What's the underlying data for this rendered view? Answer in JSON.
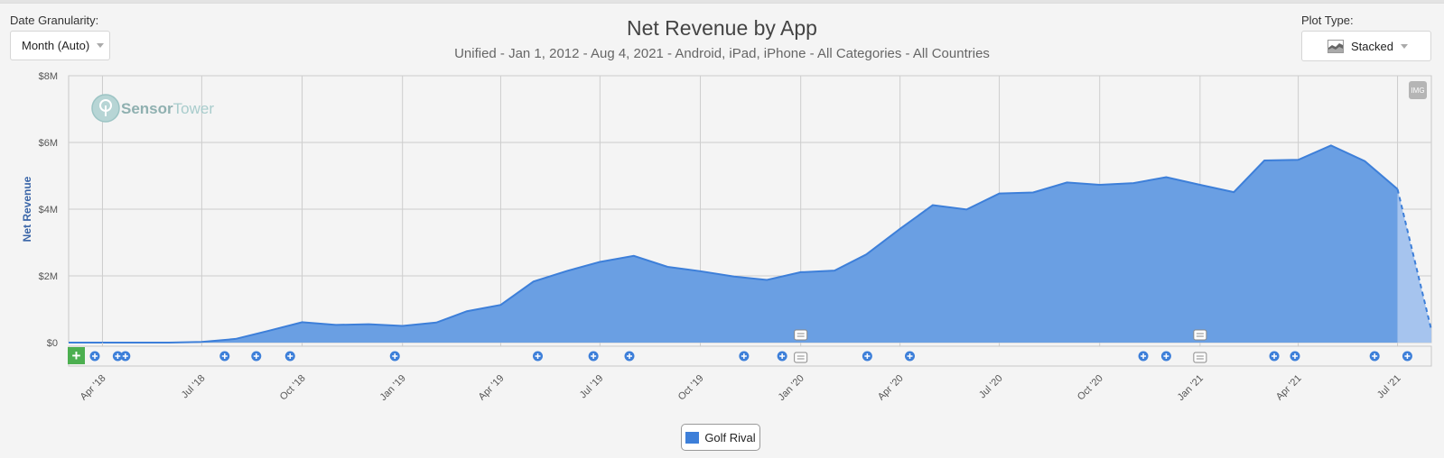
{
  "controls": {
    "granularity_label": "Date Granularity:",
    "granularity_value": "Month (Auto)",
    "plot_type_label": "Plot Type:",
    "plot_type_value": "Stacked",
    "plot_type_icon": "area-chart-icon"
  },
  "watermark": {
    "brand1": "Sensor",
    "brand2": "Tower",
    "logo_icon": "sensortower-logo-icon"
  },
  "img_button_label": "IMG",
  "add_button_label": "+",
  "colors": {
    "series": "#3d7fd9",
    "fill": "#6a9fe3",
    "projection": "#a6c4ee",
    "axis_text": "#3b66a8",
    "add_green": "#4caf50"
  },
  "chart_data": {
    "type": "area",
    "title": "Net Revenue by App",
    "subtitle": "Unified - Jan 1, 2012 - Aug 4, 2021 - Android, iPad, iPhone - All Categories - All Countries",
    "ylabel": "Net Revenue",
    "xlabel": "",
    "ylim": [
      0,
      8000000
    ],
    "y_ticks": [
      {
        "value": 0,
        "label": "$0"
      },
      {
        "value": 2000000,
        "label": "$2M"
      },
      {
        "value": 4000000,
        "label": "$4M"
      },
      {
        "value": 6000000,
        "label": "$6M"
      },
      {
        "value": 8000000,
        "label": "$8M"
      }
    ],
    "x_ticks": [
      "Apr '18",
      "Jul '18",
      "Oct '18",
      "Jan '19",
      "Apr '19",
      "Jul '19",
      "Oct '19",
      "Jan '20",
      "Apr '20",
      "Jul '20",
      "Oct '20",
      "Jan '21",
      "Apr '21",
      "Jul '21"
    ],
    "x_tick_dates": [
      "2018-04-01",
      "2018-07-01",
      "2018-10-01",
      "2019-01-01",
      "2019-04-01",
      "2019-07-01",
      "2019-10-01",
      "2020-01-01",
      "2020-04-01",
      "2020-07-01",
      "2020-10-01",
      "2021-01-01",
      "2021-04-01",
      "2021-07-01"
    ],
    "grid": true,
    "legend_position": "bottom-center",
    "series": [
      {
        "name": "Golf Rival",
        "color": "#3d7fd9",
        "points": [
          {
            "x": "2018-03-01",
            "y": 0
          },
          {
            "x": "2018-04-01",
            "y": 0
          },
          {
            "x": "2018-05-01",
            "y": 0
          },
          {
            "x": "2018-06-01",
            "y": 0
          },
          {
            "x": "2018-07-01",
            "y": 20000
          },
          {
            "x": "2018-08-01",
            "y": 110000
          },
          {
            "x": "2018-09-01",
            "y": 360000
          },
          {
            "x": "2018-10-01",
            "y": 610000
          },
          {
            "x": "2018-11-01",
            "y": 530000
          },
          {
            "x": "2018-12-01",
            "y": 550000
          },
          {
            "x": "2019-01-01",
            "y": 500000
          },
          {
            "x": "2019-02-01",
            "y": 600000
          },
          {
            "x": "2019-03-01",
            "y": 940000
          },
          {
            "x": "2019-04-01",
            "y": 1130000
          },
          {
            "x": "2019-05-01",
            "y": 1830000
          },
          {
            "x": "2019-06-01",
            "y": 2150000
          },
          {
            "x": "2019-07-01",
            "y": 2420000
          },
          {
            "x": "2019-08-01",
            "y": 2600000
          },
          {
            "x": "2019-09-01",
            "y": 2270000
          },
          {
            "x": "2019-10-01",
            "y": 2140000
          },
          {
            "x": "2019-11-01",
            "y": 1980000
          },
          {
            "x": "2019-12-01",
            "y": 1880000
          },
          {
            "x": "2020-01-01",
            "y": 2110000
          },
          {
            "x": "2020-02-01",
            "y": 2160000
          },
          {
            "x": "2020-03-01",
            "y": 2640000
          },
          {
            "x": "2020-04-01",
            "y": 3410000
          },
          {
            "x": "2020-05-01",
            "y": 4120000
          },
          {
            "x": "2020-06-01",
            "y": 3990000
          },
          {
            "x": "2020-07-01",
            "y": 4470000
          },
          {
            "x": "2020-08-01",
            "y": 4500000
          },
          {
            "x": "2020-09-01",
            "y": 4800000
          },
          {
            "x": "2020-10-01",
            "y": 4730000
          },
          {
            "x": "2020-11-01",
            "y": 4780000
          },
          {
            "x": "2020-12-01",
            "y": 4960000
          },
          {
            "x": "2021-01-01",
            "y": 4730000
          },
          {
            "x": "2021-02-01",
            "y": 4510000
          },
          {
            "x": "2021-03-01",
            "y": 5460000
          },
          {
            "x": "2021-04-01",
            "y": 5480000
          },
          {
            "x": "2021-05-01",
            "y": 5910000
          },
          {
            "x": "2021-06-01",
            "y": 5440000
          },
          {
            "x": "2021-07-01",
            "y": 4600000
          },
          {
            "x": "2021-08-01",
            "y": 380000
          }
        ]
      }
    ],
    "projection_from": "2021-07-01",
    "event_markers": [
      {
        "x": "2018-03-25",
        "type": "update"
      },
      {
        "x": "2018-04-15",
        "type": "update"
      },
      {
        "x": "2018-04-22",
        "type": "update"
      },
      {
        "x": "2018-07-22",
        "type": "update"
      },
      {
        "x": "2018-08-20",
        "type": "update"
      },
      {
        "x": "2018-09-20",
        "type": "update"
      },
      {
        "x": "2018-12-25",
        "type": "update"
      },
      {
        "x": "2019-05-05",
        "type": "update"
      },
      {
        "x": "2019-06-25",
        "type": "update"
      },
      {
        "x": "2019-07-28",
        "type": "update"
      },
      {
        "x": "2019-11-10",
        "type": "update"
      },
      {
        "x": "2019-12-15",
        "type": "update"
      },
      {
        "x": "2020-03-02",
        "type": "update"
      },
      {
        "x": "2020-04-10",
        "type": "update"
      },
      {
        "x": "2020-11-10",
        "type": "update"
      },
      {
        "x": "2020-12-01",
        "type": "update"
      },
      {
        "x": "2021-03-10",
        "type": "update"
      },
      {
        "x": "2021-03-29",
        "type": "update"
      },
      {
        "x": "2021-06-10",
        "type": "update"
      },
      {
        "x": "2021-07-10",
        "type": "update"
      }
    ],
    "note_markers": [
      {
        "x": "2020-01-01"
      },
      {
        "x": "2021-01-01"
      }
    ]
  }
}
